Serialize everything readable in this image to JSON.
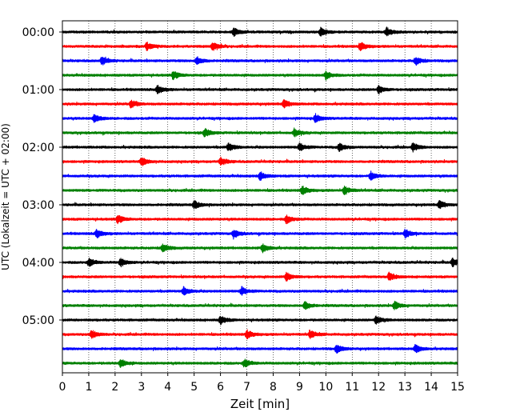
{
  "chart_data": {
    "type": "line",
    "variant": "seismogram-helicorder",
    "xlabel": "Zeit  [min]",
    "ylabel": "UTC (Lokalzeit = UTC + 02:00)",
    "xlim": [
      0,
      15
    ],
    "x_ticks": [
      0,
      1,
      2,
      3,
      4,
      5,
      6,
      7,
      8,
      9,
      10,
      11,
      12,
      13,
      14,
      15
    ],
    "x_tick_labels": [
      "0",
      "1",
      "2",
      "3",
      "4",
      "5",
      "6",
      "7",
      "8",
      "9",
      "10",
      "11",
      "12",
      "13",
      "14",
      "15"
    ],
    "x_grid": "dotted vertical at each minute",
    "trace_interval_min": 15,
    "trace_count": 24,
    "y_ticks": [
      {
        "trace": 0,
        "label": "00:00"
      },
      {
        "trace": 4,
        "label": "01:00"
      },
      {
        "trace": 8,
        "label": "02:00"
      },
      {
        "trace": 12,
        "label": "03:00"
      },
      {
        "trace": 16,
        "label": "04:00"
      },
      {
        "trace": 20,
        "label": "05:00"
      }
    ],
    "trace_colors": [
      "#000000",
      "#ff0000",
      "#0000ff",
      "#008000"
    ],
    "traces": [
      {
        "start": "00:00",
        "color": "#000000"
      },
      {
        "start": "00:15",
        "color": "#ff0000"
      },
      {
        "start": "00:30",
        "color": "#0000ff"
      },
      {
        "start": "00:45",
        "color": "#008000"
      },
      {
        "start": "01:00",
        "color": "#000000"
      },
      {
        "start": "01:15",
        "color": "#ff0000"
      },
      {
        "start": "01:30",
        "color": "#0000ff"
      },
      {
        "start": "01:45",
        "color": "#008000"
      },
      {
        "start": "02:00",
        "color": "#000000"
      },
      {
        "start": "02:15",
        "color": "#ff0000"
      },
      {
        "start": "02:30",
        "color": "#0000ff"
      },
      {
        "start": "02:45",
        "color": "#008000"
      },
      {
        "start": "03:00",
        "color": "#000000"
      },
      {
        "start": "03:15",
        "color": "#ff0000"
      },
      {
        "start": "03:30",
        "color": "#0000ff"
      },
      {
        "start": "03:45",
        "color": "#008000"
      },
      {
        "start": "04:00",
        "color": "#000000"
      },
      {
        "start": "04:15",
        "color": "#ff0000"
      },
      {
        "start": "04:30",
        "color": "#0000ff"
      },
      {
        "start": "04:45",
        "color": "#008000"
      },
      {
        "start": "05:00",
        "color": "#000000"
      },
      {
        "start": "05:15",
        "color": "#ff0000"
      },
      {
        "start": "05:30",
        "color": "#0000ff"
      },
      {
        "start": "05:45",
        "color": "#008000"
      }
    ],
    "events_min": [
      [
        6.5,
        12.3,
        9.8
      ],
      [
        11.3,
        5.7,
        3.2
      ],
      [
        5.1,
        1.5,
        13.4
      ],
      [
        4.2,
        10.0
      ],
      [
        12.0,
        3.6
      ],
      [
        8.4,
        2.6
      ],
      [
        9.6,
        1.2
      ],
      [
        8.8,
        5.4
      ],
      [
        6.3,
        9.0,
        10.5,
        13.3
      ],
      [
        3.0,
        6.0
      ],
      [
        7.5,
        11.7
      ],
      [
        10.7,
        9.1
      ],
      [
        14.3,
        5.0
      ],
      [
        2.1,
        8.5
      ],
      [
        1.3,
        6.5,
        13.0
      ],
      [
        3.8,
        7.6
      ],
      [
        1.0,
        2.2,
        14.8
      ],
      [
        8.5,
        12.4
      ],
      [
        6.8,
        4.6
      ],
      [
        9.2,
        12.6
      ],
      [
        6.0,
        11.9
      ],
      [
        7.0,
        1.1,
        9.4
      ],
      [
        10.4,
        13.4
      ],
      [
        2.2,
        6.9
      ]
    ]
  }
}
